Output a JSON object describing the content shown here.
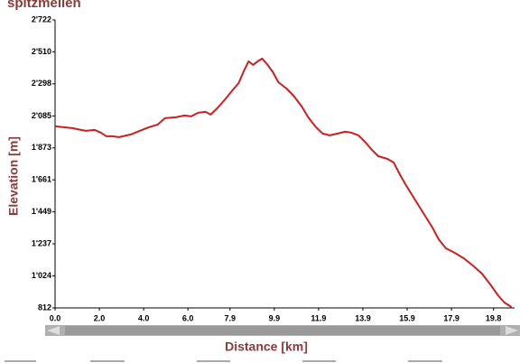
{
  "chart_data": {
    "type": "line",
    "title": "spitzmeilen",
    "x_label": "Distance [km]",
    "y_label": "Elevation [m]",
    "color": "#cc1f1f",
    "x": [
      0,
      0.77,
      1.38,
      1.79,
      2.07,
      2.32,
      2.6,
      2.89,
      3.42,
      3.82,
      4.23,
      4.64,
      4.96,
      5.45,
      5.85,
      6.14,
      6.46,
      6.79,
      7.03,
      7.36,
      7.68,
      8.01,
      8.29,
      8.5,
      8.74,
      8.94,
      9.15,
      9.35,
      9.6,
      9.84,
      10.08,
      10.45,
      10.77,
      11.14,
      11.43,
      11.75,
      12.08,
      12.4,
      12.77,
      13.09,
      13.38,
      13.7,
      13.99,
      14.31,
      14.6,
      15.01,
      15.29,
      15.61,
      15.9,
      16.22,
      16.63,
      17.04,
      17.32,
      17.65,
      18.05,
      18.46,
      18.87,
      19.27,
      19.68,
      20.0,
      20.29,
      20.61
    ],
    "values": [
      2016,
      2004,
      1986,
      1992,
      1974,
      1950,
      1950,
      1944,
      1962,
      1986,
      2010,
      2028,
      2070,
      2076,
      2088,
      2082,
      2106,
      2112,
      2094,
      2141,
      2195,
      2255,
      2303,
      2375,
      2447,
      2423,
      2447,
      2465,
      2423,
      2375,
      2309,
      2267,
      2219,
      2147,
      2076,
      2016,
      1968,
      1956,
      1968,
      1980,
      1974,
      1956,
      1914,
      1860,
      1818,
      1800,
      1776,
      1686,
      1614,
      1537,
      1441,
      1345,
      1267,
      1207,
      1177,
      1141,
      1093,
      1040,
      962,
      896,
      848,
      818
    ],
    "xlim": [
      0,
      20.75
    ],
    "xticks": [
      {
        "value": 0,
        "label": "0.0"
      },
      {
        "value": 2,
        "label": "2.0"
      },
      {
        "value": 4,
        "label": "4.0"
      },
      {
        "value": 6,
        "label": "6.0"
      },
      7.9,
      9.9,
      11.9,
      13.9,
      15.9,
      17.9,
      19.8
    ],
    "ylim": [
      812,
      2722
    ],
    "yticks": [
      812,
      {
        "value": 1024,
        "label": "1'024"
      },
      {
        "value": 1237,
        "label": "1'237"
      },
      {
        "value": 1449,
        "label": "1'449"
      },
      {
        "value": 1661,
        "label": "1'661"
      },
      {
        "value": 1873,
        "label": "1'873"
      },
      {
        "value": 2085,
        "label": "2'085"
      },
      {
        "value": 2298,
        "label": "2'298"
      },
      {
        "value": 2510,
        "label": "2'510"
      },
      {
        "value": 2722,
        "label": "2'722"
      }
    ]
  }
}
